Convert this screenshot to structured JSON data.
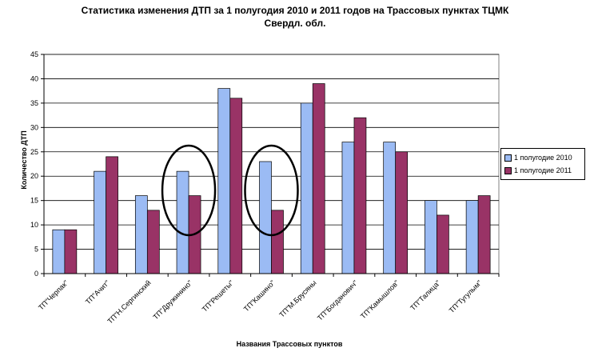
{
  "chart_data": {
    "type": "bar",
    "title": "Статистика изменения ДТП за 1 полугодия 2010 и 2011 годов на Трассовых пунктах ТЦМК",
    "subtitle": "Свердл. обл.",
    "xlabel": "Названия Трассовых пунктов",
    "ylabel": "Количество ДТП",
    "ylim": [
      0,
      45
    ],
    "yticks": [
      "0",
      "5",
      "10",
      "15",
      "20",
      "25",
      "30",
      "35",
      "40",
      "45"
    ],
    "grid": true,
    "legend_position": "right",
    "categories": [
      "ТП\"Черпак\"",
      "ТП\"Ачит\"",
      "ТП\"Н.Сергинский",
      "ТП\"Дружинино\"",
      "ТП\"Решеты\"",
      "ТП\"Кашино\"",
      "ТП\"М.Брусяны",
      "ТП\"Богданович\"",
      "ТП\"Камышлов\"",
      "ТП\"Талица\"",
      "ТП\"Тугулым\""
    ],
    "series": [
      {
        "name": "1 полугодие 2010",
        "color": "#9BBBF4",
        "values": [
          9,
          21,
          16,
          21,
          38,
          23,
          35,
          27,
          27,
          15,
          15
        ]
      },
      {
        "name": "1 полугодие 2011",
        "color": "#993366",
        "values": [
          9,
          24,
          13,
          16,
          36,
          13,
          39,
          32,
          25,
          12,
          16
        ]
      }
    ],
    "annotations": [
      {
        "shape": "ellipse",
        "category": "ТП\"Дружинино\""
      },
      {
        "shape": "ellipse",
        "category": "ТП\"Кашино\""
      }
    ]
  }
}
